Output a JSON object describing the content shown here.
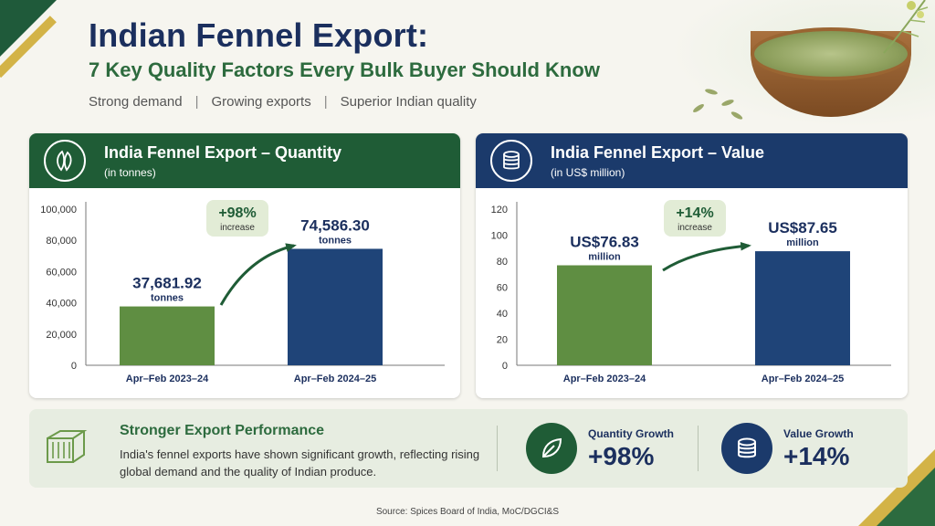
{
  "header": {
    "title": "Indian Fennel Export:",
    "subtitle": "7 Key Quality Factors Every Bulk Buyer Should Know",
    "tagline": [
      "Strong demand",
      "Growing exports",
      "Superior Indian quality"
    ],
    "separator": "|"
  },
  "colors": {
    "green": "#5f8e42",
    "navy": "#1f4478",
    "dark_green": "#1f5c36",
    "dark_navy": "#1b3a6b"
  },
  "chart_data": [
    {
      "type": "bar",
      "title": "India Fennel Export –  Quantity",
      "unit_label": "(in tonnes)",
      "categories": [
        "Apr–Feb 2023–24",
        "Apr–Feb 2024–25"
      ],
      "values": [
        37681.92,
        74586.3
      ],
      "ylim": [
        0,
        100000
      ],
      "yticks": [
        "100,000",
        "80,000",
        "60,000",
        "40,000",
        "20,000",
        "0"
      ],
      "ytick_values": [
        100000,
        80000,
        60000,
        40000,
        20000,
        0
      ],
      "data_labels": [
        "37,681.92",
        "74,586.30"
      ],
      "data_units": [
        "tonnes",
        "tonnes"
      ],
      "growth": {
        "value": "+98%",
        "label": "increase"
      },
      "grid": false
    },
    {
      "type": "bar",
      "title": "India Fennel Export – Value",
      "unit_label": "(in US$ million)",
      "categories": [
        "Apr–Feb 2023–24",
        "Apr–Feb 2024–25"
      ],
      "values": [
        76.83,
        87.65
      ],
      "ylim": [
        0,
        120
      ],
      "yticks": [
        "120",
        "100",
        "80",
        "60",
        "40",
        "20",
        "0"
      ],
      "ytick_values": [
        120,
        100,
        80,
        60,
        40,
        20,
        0
      ],
      "data_labels": [
        "US$76.83",
        "US$87.65"
      ],
      "data_units": [
        "million",
        "million"
      ],
      "growth": {
        "value": "+14%",
        "label": "increase"
      },
      "grid": false
    }
  ],
  "performance": {
    "title": "Stronger Export Performance",
    "text": "India's fennel exports have shown significant growth, reflecting rising global demand and the quality of Indian produce.",
    "quantity_label": "Quantity Growth",
    "quantity_value": "+98%",
    "value_label": "Value Growth",
    "value_value": "+14%"
  },
  "source": "Source: Spices Board of India, MoC/DGCI&S",
  "icons": [
    "fennel-leaf-icon",
    "coin-stack-icon",
    "shipping-container-icon",
    "leaf-icon"
  ]
}
